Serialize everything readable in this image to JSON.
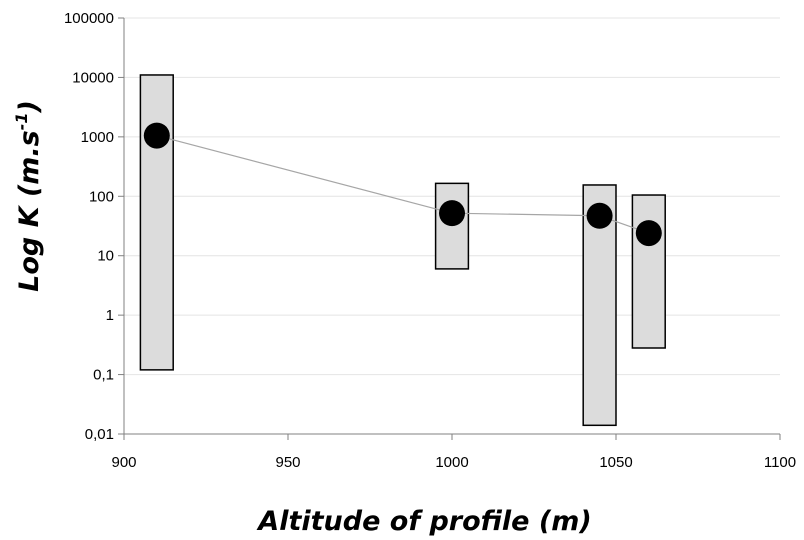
{
  "chart_data": {
    "type": "scatter",
    "title": "",
    "xlabel": "Altitude of profile (m)",
    "ylabel": {
      "main": "Log K (m.s",
      "superscript": "-1",
      "close": ")"
    },
    "xlim": [
      900,
      1100
    ],
    "ylim": [
      0.01,
      100000
    ],
    "yscale": "log",
    "grid": {
      "x": false,
      "y": true
    },
    "legend": "none",
    "x_ticks": [
      "900",
      "950",
      "1000",
      "1050",
      "1100"
    ],
    "y_ticks": [
      {
        "value": 0.01,
        "label": "0,01"
      },
      {
        "value": 0.1,
        "label": "0,1"
      },
      {
        "value": 1,
        "label": "1"
      },
      {
        "value": 10,
        "label": "10"
      },
      {
        "value": 100,
        "label": "100"
      },
      {
        "value": 1000,
        "label": "1000"
      },
      {
        "value": 10000,
        "label": "10000"
      },
      {
        "value": 100000,
        "label": "100000"
      }
    ],
    "ranges": [
      {
        "x_from": 905,
        "x_to": 915,
        "y_min": 0.12,
        "y_max": 11000
      },
      {
        "x_from": 995,
        "x_to": 1005,
        "y_min": 6,
        "y_max": 165
      },
      {
        "x_from": 1040,
        "x_to": 1050,
        "y_min": 0.014,
        "y_max": 155
      },
      {
        "x_from": 1055,
        "x_to": 1065,
        "y_min": 0.28,
        "y_max": 105
      }
    ],
    "points": [
      {
        "x": 910,
        "y": 1050
      },
      {
        "x": 1000,
        "y": 52
      },
      {
        "x": 1045,
        "y": 47
      },
      {
        "x": 1060,
        "y": 24
      }
    ],
    "colors": {
      "range_fill": "#dcdcdc",
      "range_stroke": "#000000",
      "point": "#000000",
      "line": "#a6a6a6",
      "grid": "#e4e4e4",
      "axis": "#808080"
    }
  }
}
